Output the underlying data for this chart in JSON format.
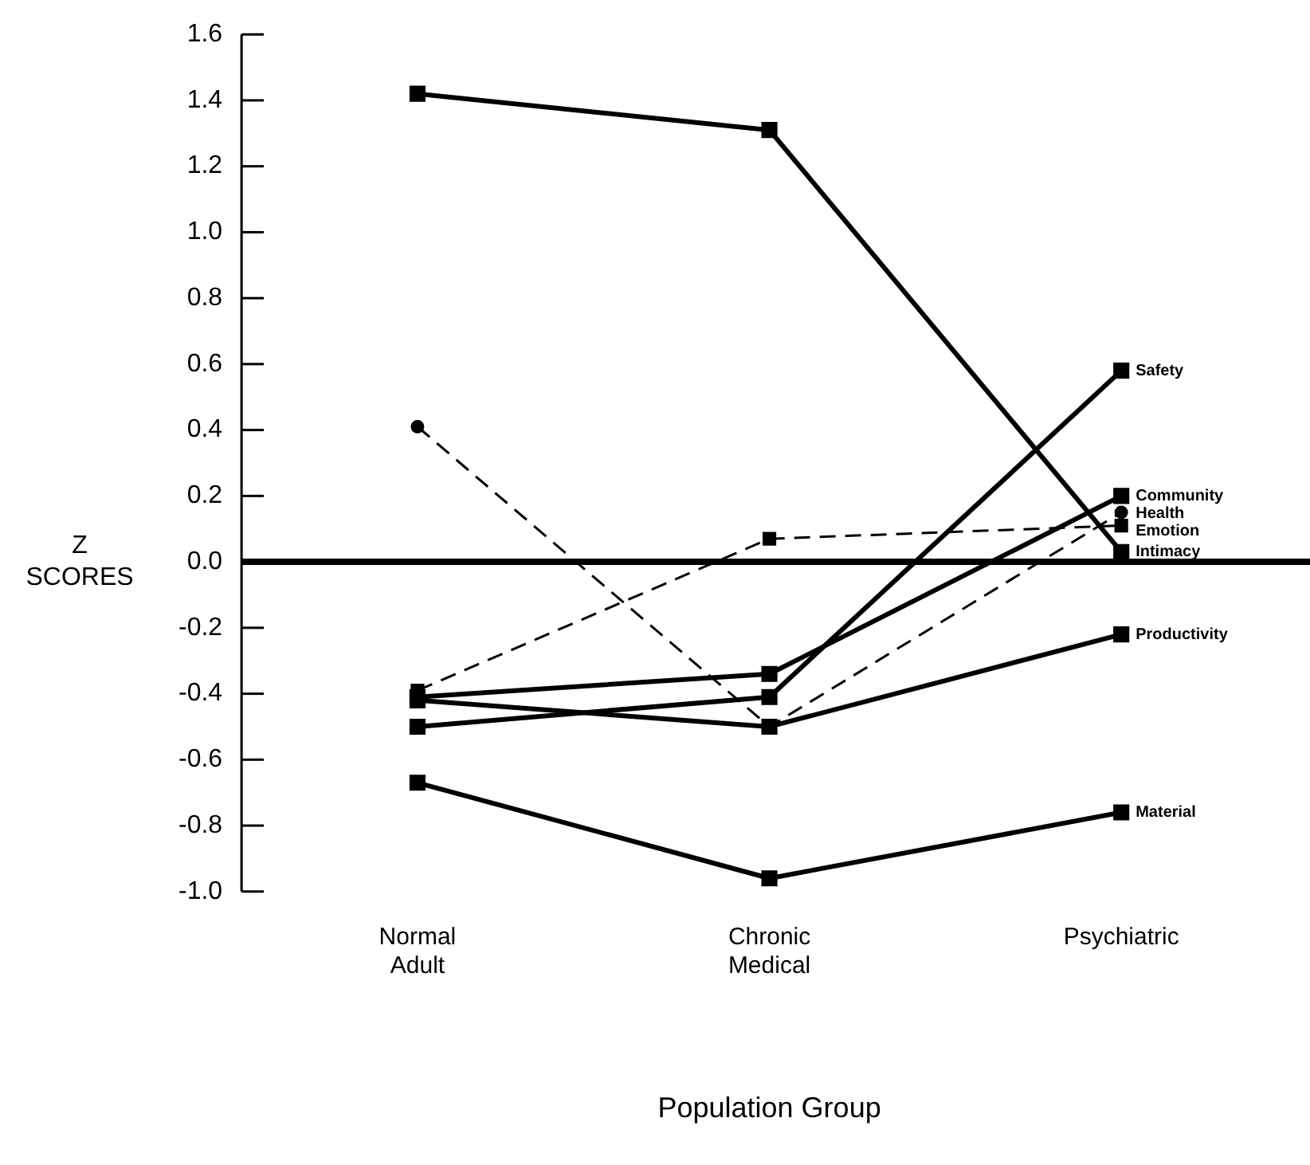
{
  "chart_data": {
    "type": "line",
    "xlabel": "Population Group",
    "ylabel": "Z SCORES",
    "categories": [
      "Normal Adult",
      "Chronic Medical",
      "Psychiatric"
    ],
    "ylim": [
      -1.0,
      1.6
    ],
    "yticks": [
      {
        "value": -1.0,
        "label": "-1.0"
      },
      {
        "value": -0.8,
        "label": "-0.8"
      },
      {
        "value": -0.6,
        "label": "-0.6"
      },
      {
        "value": -0.4,
        "label": "-0.4"
      },
      {
        "value": -0.2,
        "label": "-0.2"
      },
      {
        "value": 0,
        "label": "0.0"
      },
      {
        "value": 0.2,
        "label": "0.2"
      },
      {
        "value": 0.4,
        "label": "0.4"
      },
      {
        "value": 0.6,
        "label": "0.6"
      },
      {
        "value": 0.8,
        "label": "0.8"
      },
      {
        "value": 1.0,
        "label": "1.0"
      },
      {
        "value": 1.2,
        "label": "1.2"
      },
      {
        "value": 1.4,
        "label": "1.4"
      },
      {
        "value": 1.6,
        "label": "1.6"
      }
    ],
    "grid": false,
    "legend": false,
    "ref_lines": [
      {
        "axis": "y",
        "value": 0,
        "color": "#000000"
      }
    ],
    "series": [
      {
        "name": "Safety",
        "color": "#000000",
        "values": [
          -0.5,
          -0.41,
          0.58
        ],
        "marker": "square",
        "line_style": "solid"
      },
      {
        "name": "Community",
        "color": "#000000",
        "values": [
          -0.41,
          -0.34,
          0.2
        ],
        "marker": "square",
        "line_style": "solid"
      },
      {
        "name": "Health",
        "color": "#000000",
        "values": [
          0.41,
          -0.5,
          0.15
        ],
        "marker": "circle",
        "line_style": "dashed"
      },
      {
        "name": "Emotion",
        "color": "#000000",
        "values": [
          -0.39,
          0.07,
          0.11
        ],
        "marker": "square",
        "line_style": "dashed"
      },
      {
        "name": "Intimacy",
        "color": "#000000",
        "values": [
          1.42,
          1.31,
          0.03
        ],
        "marker": "square",
        "line_style": "solid"
      },
      {
        "name": "Productivity",
        "color": "#000000",
        "values": [
          -0.42,
          -0.5,
          -0.22
        ],
        "marker": "square",
        "line_style": "solid"
      },
      {
        "name": "Material",
        "color": "#000000",
        "values": [
          -0.67,
          -0.96,
          -0.76
        ],
        "marker": "square",
        "line_style": "solid"
      }
    ]
  }
}
